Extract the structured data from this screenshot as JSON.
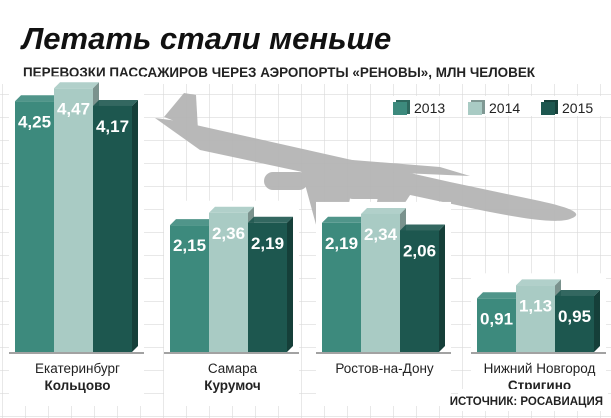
{
  "title": "Летать стали меньше",
  "subtitle": "ПЕРЕВОЗКИ ПАССАЖИРОВ ЧЕРЕЗ АЭРОПОРТЫ «РЕНОВЫ», МЛН ЧЕЛОВЕК",
  "source": "ИСТОЧНИК: РОСАВИАЦИЯ",
  "icons": {
    "background": "airplane-silhouette-icon"
  },
  "colors": {
    "2013": "#3d8a7d",
    "2014": "#a9cbc4",
    "2015": "#1d574f",
    "background_grid": "#d9d9d9",
    "airplane": "#b5b5b5"
  },
  "chart_data": {
    "type": "bar",
    "title": "Летать стали меньше",
    "subtitle": "ПЕРЕВОЗКИ ПАССАЖИРОВ ЧЕРЕЗ АЭРОПОРТЫ «РЕНОВЫ», МЛН ЧЕЛОВЕК",
    "categories": [
      {
        "city": "Екатеринбург",
        "airport": "Кольцово"
      },
      {
        "city": "Самара",
        "airport": "Курумоч"
      },
      {
        "city": "Ростов-на-Дону",
        "airport": ""
      },
      {
        "city": "Нижний Новгород",
        "airport": "Стригино"
      }
    ],
    "series": [
      {
        "name": "2013",
        "values": [
          4.25,
          2.15,
          2.19,
          0.91
        ],
        "labels": [
          "4,25",
          "2,15",
          "2,19",
          "0,91"
        ]
      },
      {
        "name": "2014",
        "values": [
          4.47,
          2.36,
          2.34,
          1.13
        ],
        "labels": [
          "4,47",
          "2,36",
          "2,34",
          "1,13"
        ]
      },
      {
        "name": "2015",
        "values": [
          4.17,
          2.19,
          2.06,
          0.95
        ],
        "labels": [
          "4,17",
          "2,19",
          "2,06",
          "0,95"
        ]
      }
    ],
    "xlabel": "",
    "ylabel": "",
    "ylim": [
      0,
      4.47
    ],
    "legend": "top-right",
    "grid": true
  }
}
